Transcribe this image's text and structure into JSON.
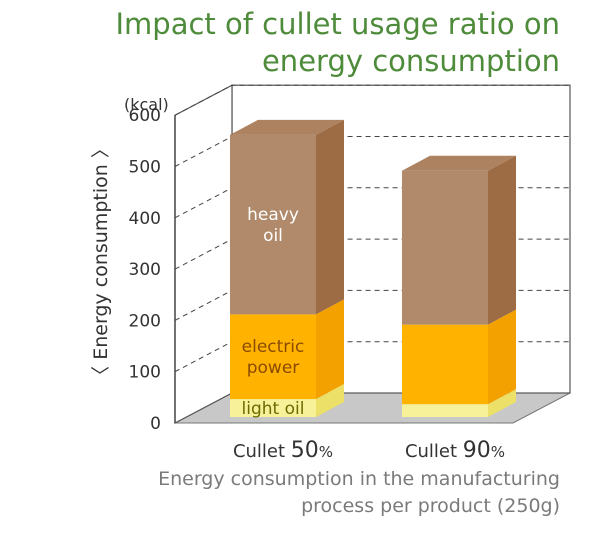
{
  "title_lines": [
    "Impact of cullet usage ratio on",
    "energy consumption"
  ],
  "footer_lines": [
    "Energy consumption in the manufacturing",
    "process per product (250g)"
  ],
  "chart_data": {
    "type": "bar",
    "stacked": true,
    "three_d": true,
    "unit_label": "(kcal)",
    "ylabel": "〈 Energy consumption 〉",
    "ylim": [
      0,
      600
    ],
    "yticks": [
      0,
      100,
      200,
      300,
      400,
      500,
      600
    ],
    "grid": "dashed",
    "categories": [
      {
        "prefix": "Cullet ",
        "number": "50",
        "suffix": "%"
      },
      {
        "prefix": "Cullet ",
        "number": "90",
        "suffix": "%"
      }
    ],
    "series": [
      {
        "name": "light oil",
        "values": [
          35,
          25
        ],
        "color": "#f7f29a",
        "side": "#ece068"
      },
      {
        "name": "electric\npower",
        "values": [
          165,
          155
        ],
        "color": "#ffb300",
        "side": "#f2a100"
      },
      {
        "name": "heavy\noil",
        "values": [
          350,
          300
        ],
        "color": "#b08a6a",
        "side": "#9e6c44"
      }
    ],
    "floor_color": "#c8c8c8"
  }
}
